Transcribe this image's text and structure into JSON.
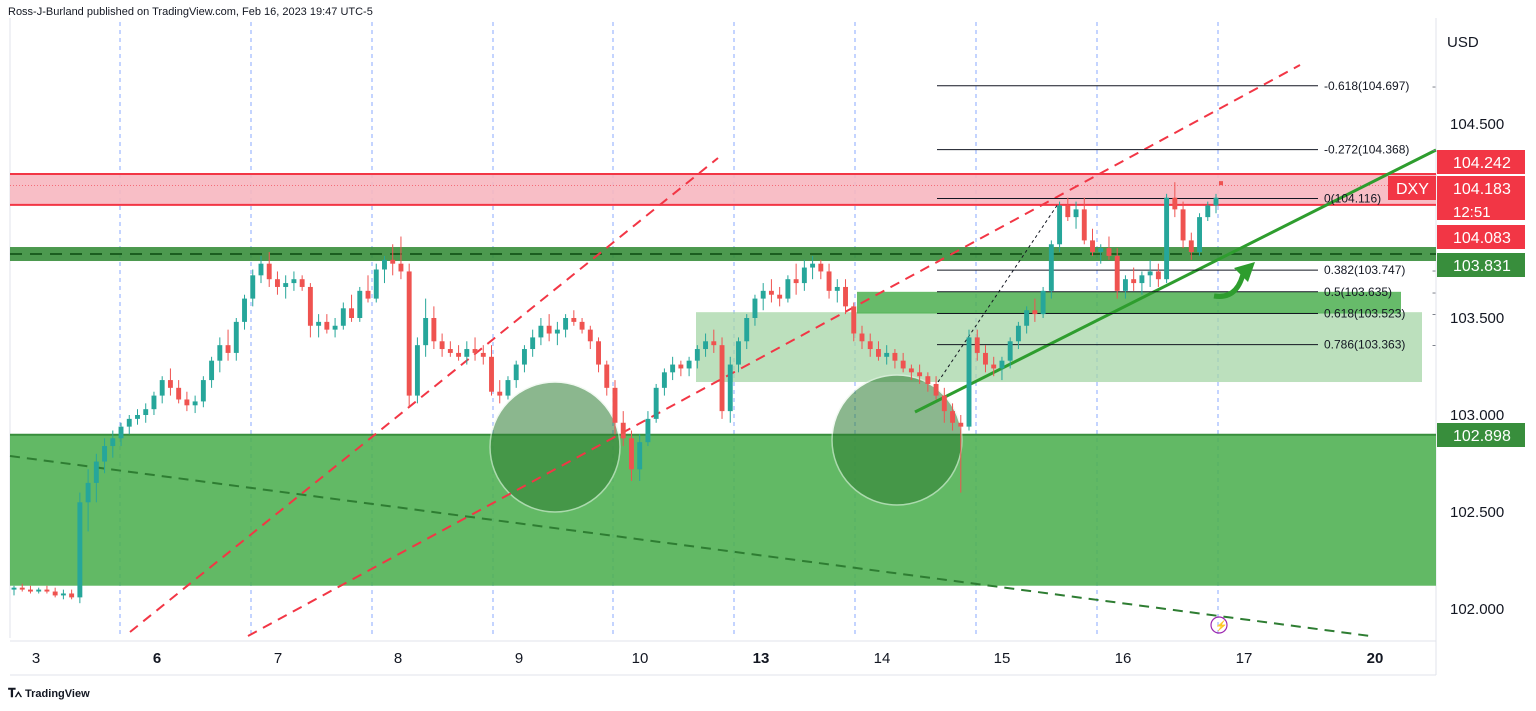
{
  "header": {
    "text": "Ross-J-Burland published on TradingView.com, Feb 16, 2023 19:47 UTC-5"
  },
  "footer": {
    "brand": "TradingView",
    "logo_icon": "tradingview-logo-icon"
  },
  "colors": {
    "up_candle": "#26a69a",
    "down_candle": "#ef5350",
    "resistance_zone": "#f7b7c0",
    "resistance_line": "#f23645",
    "support_green": "#388e3c",
    "zone_green": "#4caf50",
    "light_zone": "#a5d6a7",
    "dashed_red": "#f23645",
    "vline_blue": "#2962ff"
  },
  "chart_data": {
    "type": "candlestick",
    "symbol": "DXY",
    "currency_label": "USD",
    "y_ticks": [
      "104.500",
      "103.500",
      "103.000",
      "102.500",
      "102.000"
    ],
    "y_tick_values": [
      104.5,
      103.5,
      103.0,
      102.5,
      102.0
    ],
    "x_ticks": [
      {
        "label": "3",
        "bold": false
      },
      {
        "label": "6",
        "bold": true
      },
      {
        "label": "7",
        "bold": false
      },
      {
        "label": "8",
        "bold": false
      },
      {
        "label": "9",
        "bold": false
      },
      {
        "label": "10",
        "bold": false
      },
      {
        "label": "13",
        "bold": true
      },
      {
        "label": "14",
        "bold": false
      },
      {
        "label": "15",
        "bold": false
      },
      {
        "label": "16",
        "bold": false
      },
      {
        "label": "17",
        "bold": false
      },
      {
        "label": "20",
        "bold": true
      }
    ],
    "price_tags": [
      {
        "label": "104.242",
        "value": 104.242,
        "color": "#f23645"
      },
      {
        "label": "104.183",
        "value": 104.183,
        "color": "#f23645",
        "symbol": "DXY",
        "countdown": "12:51"
      },
      {
        "label": "104.083",
        "value": 104.083,
        "color": "#f23645"
      },
      {
        "label": "103.831",
        "value": 103.831,
        "color": "#388e3c"
      },
      {
        "label": "102.898",
        "value": 102.898,
        "color": "#388e3c"
      }
    ],
    "fib_levels": [
      {
        "label": "-0.618(104.697)",
        "value": 104.697
      },
      {
        "label": "-0.272(104.368)",
        "value": 104.368
      },
      {
        "label": "0(104.116)",
        "value": 104.116
      },
      {
        "label": "0.382(103.747)",
        "value": 103.747
      },
      {
        "label": "0.5(103.635)",
        "value": 103.635
      },
      {
        "label": "0.618(103.523)",
        "value": 103.523
      },
      {
        "label": "0.786(103.363)",
        "value": 103.363
      }
    ],
    "zones": [
      {
        "name": "resistance",
        "top": 104.242,
        "bottom": 104.083
      },
      {
        "name": "support-band",
        "top": 103.831,
        "bottom": 103.81
      },
      {
        "name": "fib-support-band",
        "top": 103.635,
        "bottom": 103.523
      },
      {
        "name": "consolidation",
        "top": 103.53,
        "bottom": 103.17
      },
      {
        "name": "demand",
        "top": 102.898,
        "bottom": 102.12
      }
    ],
    "candles": [
      [
        102.1,
        102.12,
        102.07,
        102.11
      ],
      [
        102.11,
        102.13,
        102.09,
        102.1
      ],
      [
        102.1,
        102.12,
        102.08,
        102.09
      ],
      [
        102.09,
        102.11,
        102.08,
        102.1
      ],
      [
        102.1,
        102.12,
        102.08,
        102.09
      ],
      [
        102.09,
        102.11,
        102.06,
        102.07
      ],
      [
        102.07,
        102.1,
        102.05,
        102.08
      ],
      [
        102.08,
        102.1,
        102.05,
        102.06
      ],
      [
        102.06,
        102.6,
        102.03,
        102.55
      ],
      [
        102.55,
        102.72,
        102.4,
        102.65
      ],
      [
        102.65,
        102.8,
        102.55,
        102.76
      ],
      [
        102.76,
        102.88,
        102.7,
        102.84
      ],
      [
        102.84,
        102.92,
        102.78,
        102.88
      ],
      [
        102.88,
        102.96,
        102.84,
        102.94
      ],
      [
        102.94,
        103.0,
        102.9,
        102.98
      ],
      [
        102.98,
        103.03,
        102.95,
        103.0
      ],
      [
        103.0,
        103.06,
        102.96,
        103.03
      ],
      [
        103.03,
        103.12,
        103.0,
        103.1
      ],
      [
        103.1,
        103.2,
        103.06,
        103.18
      ],
      [
        103.18,
        103.24,
        103.1,
        103.14
      ],
      [
        103.14,
        103.18,
        103.06,
        103.08
      ],
      [
        103.08,
        103.12,
        103.02,
        103.05
      ],
      [
        103.05,
        103.1,
        103.01,
        103.07
      ],
      [
        103.07,
        103.2,
        103.04,
        103.18
      ],
      [
        103.18,
        103.3,
        103.14,
        103.28
      ],
      [
        103.28,
        103.4,
        103.22,
        103.36
      ],
      [
        103.36,
        103.44,
        103.28,
        103.32
      ],
      [
        103.32,
        103.5,
        103.28,
        103.48
      ],
      [
        103.48,
        103.62,
        103.44,
        103.6
      ],
      [
        103.6,
        103.75,
        103.56,
        103.72
      ],
      [
        103.72,
        103.82,
        103.68,
        103.78
      ],
      [
        103.78,
        103.84,
        103.66,
        103.7
      ],
      [
        103.7,
        103.74,
        103.62,
        103.66
      ],
      [
        103.66,
        103.72,
        103.6,
        103.68
      ],
      [
        103.68,
        103.74,
        103.64,
        103.7
      ],
      [
        103.7,
        103.72,
        103.64,
        103.66
      ],
      [
        103.66,
        103.68,
        103.4,
        103.46
      ],
      [
        103.46,
        103.52,
        103.4,
        103.48
      ],
      [
        103.48,
        103.52,
        103.42,
        103.44
      ],
      [
        103.44,
        103.5,
        103.4,
        103.46
      ],
      [
        103.46,
        103.58,
        103.44,
        103.55
      ],
      [
        103.55,
        103.62,
        103.48,
        103.5
      ],
      [
        103.5,
        103.66,
        103.48,
        103.64
      ],
      [
        103.64,
        103.72,
        103.58,
        103.6
      ],
      [
        103.6,
        103.78,
        103.58,
        103.75
      ],
      [
        103.75,
        103.82,
        103.68,
        103.8
      ],
      [
        103.8,
        103.88,
        103.72,
        103.78
      ],
      [
        103.78,
        103.92,
        103.7,
        103.74
      ],
      [
        103.74,
        103.78,
        103.04,
        103.1
      ],
      [
        103.1,
        103.4,
        103.06,
        103.36
      ],
      [
        103.36,
        103.6,
        103.3,
        103.5
      ],
      [
        103.5,
        103.56,
        103.34,
        103.38
      ],
      [
        103.38,
        103.42,
        103.3,
        103.34
      ],
      [
        103.34,
        103.38,
        103.3,
        103.32
      ],
      [
        103.32,
        103.36,
        103.28,
        103.3
      ],
      [
        103.3,
        103.38,
        103.26,
        103.34
      ],
      [
        103.34,
        103.4,
        103.28,
        103.32
      ],
      [
        103.32,
        103.36,
        103.26,
        103.3
      ],
      [
        103.3,
        103.36,
        103.1,
        103.12
      ],
      [
        103.12,
        103.18,
        103.06,
        103.1
      ],
      [
        103.1,
        103.2,
        103.08,
        103.18
      ],
      [
        103.18,
        103.28,
        103.14,
        103.26
      ],
      [
        103.26,
        103.36,
        103.22,
        103.34
      ],
      [
        103.34,
        103.44,
        103.3,
        103.4
      ],
      [
        103.4,
        103.5,
        103.36,
        103.46
      ],
      [
        103.46,
        103.52,
        103.38,
        103.42
      ],
      [
        103.42,
        103.48,
        103.36,
        103.44
      ],
      [
        103.44,
        103.52,
        103.4,
        103.5
      ],
      [
        103.5,
        103.54,
        103.46,
        103.48
      ],
      [
        103.48,
        103.5,
        103.42,
        103.44
      ],
      [
        103.44,
        103.46,
        103.34,
        103.38
      ],
      [
        103.38,
        103.4,
        103.22,
        103.26
      ],
      [
        103.26,
        103.28,
        103.1,
        103.14
      ],
      [
        103.14,
        103.18,
        102.9,
        102.96
      ],
      [
        102.96,
        103.02,
        102.84,
        102.88
      ],
      [
        102.88,
        102.92,
        102.66,
        102.72
      ],
      [
        102.72,
        102.9,
        102.66,
        102.86
      ],
      [
        102.86,
        103.02,
        102.84,
        102.98
      ],
      [
        102.98,
        103.16,
        102.96,
        103.14
      ],
      [
        103.14,
        103.24,
        103.1,
        103.22
      ],
      [
        103.22,
        103.3,
        103.18,
        103.26
      ],
      [
        103.26,
        103.28,
        103.2,
        103.24
      ],
      [
        103.24,
        103.3,
        103.2,
        103.28
      ],
      [
        103.28,
        103.36,
        103.24,
        103.34
      ],
      [
        103.34,
        103.42,
        103.3,
        103.38
      ],
      [
        103.38,
        103.44,
        103.32,
        103.36
      ],
      [
        103.36,
        103.4,
        102.98,
        103.02
      ],
      [
        103.02,
        103.3,
        102.96,
        103.26
      ],
      [
        103.26,
        103.4,
        103.22,
        103.38
      ],
      [
        103.38,
        103.52,
        103.34,
        103.5
      ],
      [
        103.5,
        103.62,
        103.46,
        103.6
      ],
      [
        103.6,
        103.68,
        103.54,
        103.64
      ],
      [
        103.64,
        103.7,
        103.58,
        103.62
      ],
      [
        103.62,
        103.66,
        103.56,
        103.6
      ],
      [
        103.6,
        103.72,
        103.58,
        103.7
      ],
      [
        103.7,
        103.78,
        103.62,
        103.68
      ],
      [
        103.68,
        103.8,
        103.64,
        103.76
      ],
      [
        103.76,
        103.82,
        103.7,
        103.78
      ],
      [
        103.78,
        103.8,
        103.7,
        103.74
      ],
      [
        103.74,
        103.78,
        103.6,
        103.64
      ],
      [
        103.64,
        103.7,
        103.58,
        103.66
      ],
      [
        103.66,
        103.7,
        103.52,
        103.56
      ],
      [
        103.56,
        103.58,
        103.38,
        103.42
      ],
      [
        103.42,
        103.46,
        103.34,
        103.38
      ],
      [
        103.38,
        103.42,
        103.3,
        103.34
      ],
      [
        103.34,
        103.38,
        103.28,
        103.3
      ],
      [
        103.3,
        103.36,
        103.26,
        103.32
      ],
      [
        103.32,
        103.34,
        103.24,
        103.28
      ],
      [
        103.28,
        103.32,
        103.22,
        103.24
      ],
      [
        103.24,
        103.26,
        103.18,
        103.22
      ],
      [
        103.22,
        103.26,
        103.16,
        103.2
      ],
      [
        103.2,
        103.22,
        103.12,
        103.16
      ],
      [
        103.16,
        103.2,
        103.08,
        103.1
      ],
      [
        103.1,
        103.14,
        102.96,
        103.02
      ],
      [
        103.02,
        103.06,
        102.92,
        102.96
      ],
      [
        102.96,
        103.0,
        102.6,
        102.94
      ],
      [
        102.94,
        103.44,
        102.92,
        103.4
      ],
      [
        103.4,
        103.44,
        103.28,
        103.32
      ],
      [
        103.32,
        103.36,
        103.22,
        103.26
      ],
      [
        103.26,
        103.3,
        103.2,
        103.24
      ],
      [
        103.24,
        103.3,
        103.18,
        103.28
      ],
      [
        103.28,
        103.4,
        103.24,
        103.38
      ],
      [
        103.38,
        103.48,
        103.34,
        103.46
      ],
      [
        103.46,
        103.56,
        103.42,
        103.54
      ],
      [
        103.54,
        103.6,
        103.48,
        103.52
      ],
      [
        103.52,
        103.66,
        103.5,
        103.64
      ],
      [
        103.64,
        103.9,
        103.6,
        103.88
      ],
      [
        103.88,
        104.1,
        103.84,
        104.08
      ],
      [
        104.08,
        104.12,
        104.0,
        104.02
      ],
      [
        104.02,
        104.1,
        103.96,
        104.06
      ],
      [
        104.06,
        104.12,
        103.88,
        103.9
      ],
      [
        103.9,
        103.96,
        103.82,
        103.84
      ],
      [
        103.84,
        103.88,
        103.78,
        103.86
      ],
      [
        103.86,
        103.92,
        103.8,
        103.82
      ],
      [
        103.82,
        103.86,
        103.6,
        103.64
      ],
      [
        103.64,
        103.72,
        103.6,
        103.7
      ],
      [
        103.7,
        103.76,
        103.64,
        103.68
      ],
      [
        103.68,
        103.74,
        103.62,
        103.72
      ],
      [
        103.72,
        103.8,
        103.66,
        103.74
      ],
      [
        103.74,
        103.78,
        103.66,
        103.7
      ],
      [
        103.7,
        104.14,
        103.68,
        104.12
      ],
      [
        104.12,
        104.2,
        104.02,
        104.06
      ],
      [
        104.06,
        104.1,
        103.86,
        103.9
      ],
      [
        103.9,
        103.94,
        103.8,
        103.84
      ],
      [
        103.84,
        104.04,
        103.82,
        104.02
      ],
      [
        104.02,
        104.1,
        104.0,
        104.08
      ],
      [
        104.08,
        104.14,
        104.04,
        104.12
      ]
    ]
  }
}
